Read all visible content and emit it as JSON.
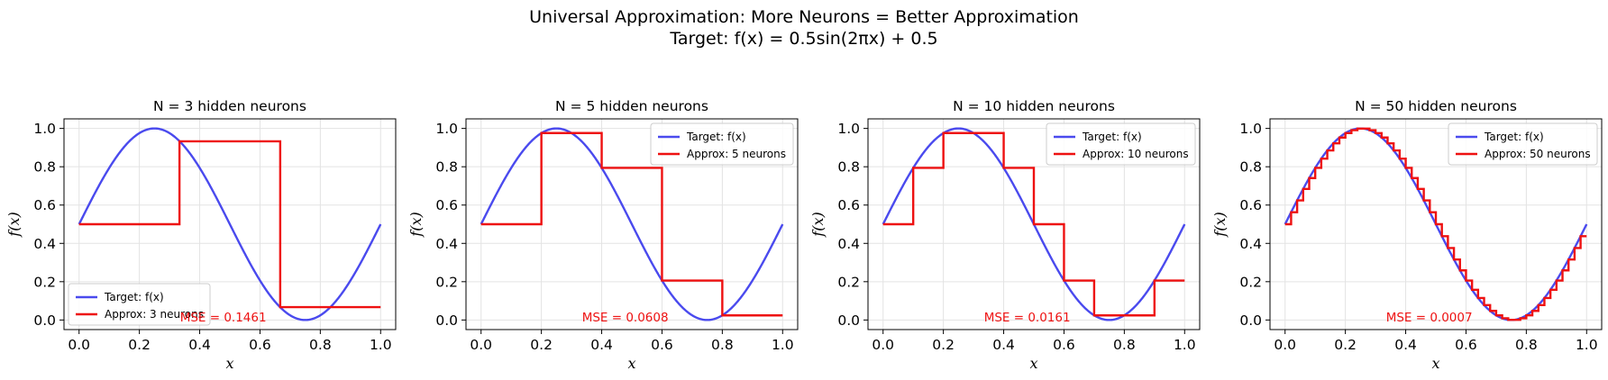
{
  "figure": {
    "title_line1": "Universal Approximation: More Neurons = Better Approximation",
    "title_line2": "Target: f(x) = 0.5sin(2πx) + 0.5"
  },
  "colors": {
    "target": "#4a4aee",
    "approx": "#ee1111",
    "grid": "#e3e3e3",
    "mse": "#ee1111"
  },
  "chart_data": [
    {
      "type": "line",
      "title": "N = 3 hidden neurons",
      "xlabel": "x",
      "ylabel": "f(x)",
      "xlim": [
        -0.05,
        1.05
      ],
      "ylim": [
        -0.05,
        1.05
      ],
      "xticks": [
        "0.0",
        "0.2",
        "0.4",
        "0.6",
        "0.8",
        "1.0"
      ],
      "yticks": [
        "0.0",
        "0.2",
        "0.4",
        "0.6",
        "0.8",
        "1.0"
      ],
      "grid": true,
      "legend_position": "lower-left",
      "series": [
        {
          "name": "Target: f(x)",
          "kind": "curve",
          "function": "0.5*sin(2*pi*x)+0.5",
          "x_range": [
            0,
            1
          ]
        },
        {
          "name": "Approx: 3 neurons",
          "kind": "step",
          "edges": [
            0,
            0.333,
            0.667,
            1.0
          ],
          "values": [
            0.5,
            0.933,
            0.067
          ]
        }
      ],
      "annotation": "MSE = 0.1461"
    },
    {
      "type": "line",
      "title": "N = 5 hidden neurons",
      "xlabel": "x",
      "ylabel": "f(x)",
      "xlim": [
        -0.05,
        1.05
      ],
      "ylim": [
        -0.05,
        1.05
      ],
      "xticks": [
        "0.0",
        "0.2",
        "0.4",
        "0.6",
        "0.8",
        "1.0"
      ],
      "yticks": [
        "0.0",
        "0.2",
        "0.4",
        "0.6",
        "0.8",
        "1.0"
      ],
      "grid": true,
      "legend_position": "upper-right",
      "series": [
        {
          "name": "Target: f(x)",
          "kind": "curve",
          "function": "0.5*sin(2*pi*x)+0.5",
          "x_range": [
            0,
            1
          ]
        },
        {
          "name": "Approx: 5 neurons",
          "kind": "step",
          "edges": [
            0,
            0.2,
            0.4,
            0.6,
            0.8,
            1.0
          ],
          "values": [
            0.5,
            0.976,
            0.794,
            0.206,
            0.024
          ]
        }
      ],
      "annotation": "MSE = 0.0608"
    },
    {
      "type": "line",
      "title": "N = 10 hidden neurons",
      "xlabel": "x",
      "ylabel": "f(x)",
      "xlim": [
        -0.05,
        1.05
      ],
      "ylim": [
        -0.05,
        1.05
      ],
      "xticks": [
        "0.0",
        "0.2",
        "0.4",
        "0.6",
        "0.8",
        "1.0"
      ],
      "yticks": [
        "0.0",
        "0.2",
        "0.4",
        "0.6",
        "0.8",
        "1.0"
      ],
      "grid": true,
      "legend_position": "upper-right",
      "series": [
        {
          "name": "Target: f(x)",
          "kind": "curve",
          "function": "0.5*sin(2*pi*x)+0.5",
          "x_range": [
            0,
            1
          ]
        },
        {
          "name": "Approx: 10 neurons",
          "kind": "step",
          "edges": [
            0,
            0.1,
            0.2,
            0.3,
            0.4,
            0.5,
            0.6,
            0.7,
            0.8,
            0.9,
            1.0
          ],
          "values": [
            0.5,
            0.794,
            0.976,
            0.976,
            0.794,
            0.5,
            0.206,
            0.024,
            0.024,
            0.206
          ]
        }
      ],
      "annotation": "MSE = 0.0161"
    },
    {
      "type": "line",
      "title": "N = 50 hidden neurons",
      "xlabel": "x",
      "ylabel": "f(x)",
      "xlim": [
        -0.05,
        1.05
      ],
      "ylim": [
        -0.05,
        1.05
      ],
      "xticks": [
        "0.0",
        "0.2",
        "0.4",
        "0.6",
        "0.8",
        "1.0"
      ],
      "yticks": [
        "0.0",
        "0.2",
        "0.4",
        "0.6",
        "0.8",
        "1.0"
      ],
      "grid": true,
      "legend_position": "upper-right",
      "series": [
        {
          "name": "Target: f(x)",
          "kind": "curve",
          "function": "0.5*sin(2*pi*x)+0.5",
          "x_range": [
            0,
            1
          ]
        },
        {
          "name": "Approx: 50 neurons",
          "kind": "step",
          "steps": 50,
          "sampling": "left-edge",
          "function": "0.5*sin(2*pi*x)+0.5"
        }
      ],
      "annotation": "MSE = 0.0007"
    }
  ]
}
